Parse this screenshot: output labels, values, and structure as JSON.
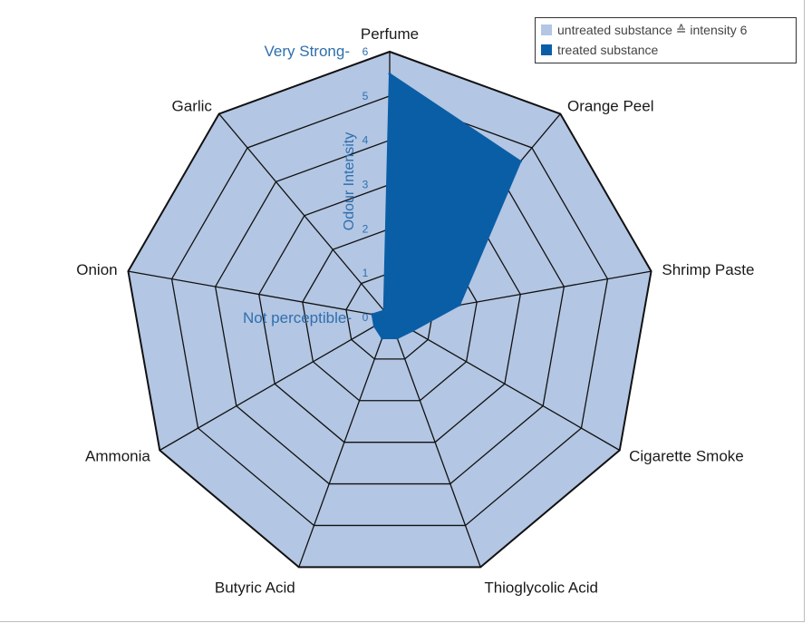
{
  "chart_data": {
    "type": "radar",
    "title": "",
    "axis_title": "Odour Intensity",
    "categories": [
      "Perfume",
      "Orange Peel",
      "Shrimp Paste",
      "Cigarette Smoke",
      "Thioglycolic Acid",
      "Butyric Acid",
      "Ammonia",
      "Onion",
      "Garlic"
    ],
    "rmin": 0,
    "rmax": 6,
    "tick_labels": [
      "0",
      "1",
      "2",
      "3",
      "4",
      "5",
      "6"
    ],
    "annotations": {
      "top": "Very  Strong-",
      "bottom": "Not perceptible-"
    },
    "series": [
      {
        "name": "untreated substance ≙ intensity 6",
        "values": [
          6,
          6,
          6,
          6,
          6,
          6,
          6,
          6,
          6
        ],
        "color": "#b3c6e3"
      },
      {
        "name": "treated substance",
        "values": [
          5.5,
          4.6,
          1.6,
          0.6,
          0.5,
          0.5,
          0.4,
          0.4,
          0.2
        ],
        "color": "#0a5ea6"
      }
    ]
  }
}
